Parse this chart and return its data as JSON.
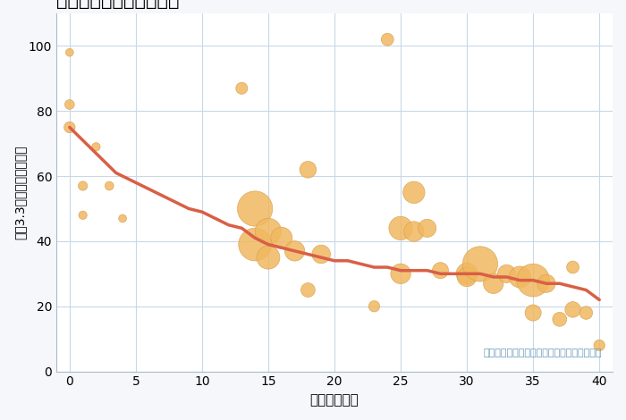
{
  "xlabel": "築年数（年）",
  "ylabel": "坪（3.3㎡）単価（万円）",
  "annotation": "円の大きさは、取引のあった物件面積を示す",
  "fig_bg_color": "#f5f7fa",
  "plot_bg_color": "#ffffff",
  "grid_color": "#c8d8e8",
  "scatter_color": "#f0b860",
  "scatter_edge_color": "#d9a050",
  "line_color": "#d95f45",
  "annotation_color": "#6699bb",
  "xlim": [
    -1,
    41
  ],
  "ylim": [
    0,
    110
  ],
  "xticks": [
    0,
    5,
    10,
    15,
    20,
    25,
    30,
    35,
    40
  ],
  "yticks": [
    0,
    20,
    40,
    60,
    80,
    100
  ],
  "scatter_x": [
    0,
    0,
    0,
    1,
    1,
    2,
    3,
    4,
    13,
    14,
    14,
    15,
    15,
    16,
    17,
    18,
    18,
    19,
    23,
    24,
    25,
    25,
    26,
    26,
    27,
    28,
    30,
    30,
    31,
    32,
    33,
    34,
    35,
    35,
    36,
    37,
    38,
    38,
    39,
    40
  ],
  "scatter_y": [
    98,
    82,
    75,
    57,
    48,
    69,
    57,
    47,
    87,
    50,
    39,
    43,
    35,
    41,
    37,
    62,
    25,
    36,
    20,
    102,
    44,
    30,
    55,
    43,
    44,
    31,
    30,
    29,
    33,
    27,
    30,
    29,
    18,
    28,
    27,
    16,
    19,
    32,
    18,
    8
  ],
  "scatter_size": [
    40,
    60,
    80,
    55,
    45,
    45,
    50,
    40,
    90,
    800,
    700,
    450,
    350,
    300,
    260,
    180,
    130,
    220,
    80,
    100,
    360,
    260,
    310,
    260,
    210,
    170,
    300,
    240,
    800,
    260,
    210,
    300,
    170,
    700,
    210,
    130,
    160,
    100,
    110,
    80
  ],
  "trend_x": [
    0,
    0.5,
    1,
    1.5,
    2,
    2.5,
    3,
    3.5,
    4,
    5,
    6,
    7,
    8,
    9,
    10,
    11,
    12,
    13,
    14,
    15,
    16,
    17,
    18,
    19,
    20,
    21,
    22,
    23,
    24,
    25,
    26,
    27,
    28,
    29,
    30,
    31,
    32,
    33,
    34,
    35,
    36,
    37,
    38,
    39,
    40
  ],
  "trend_y": [
    75,
    73,
    71,
    69,
    67,
    65,
    63,
    61,
    60,
    58,
    56,
    54,
    52,
    50,
    49,
    47,
    45,
    44,
    41,
    39,
    38,
    37,
    36,
    35,
    34,
    34,
    33,
    32,
    32,
    31,
    31,
    31,
    30,
    30,
    30,
    30,
    29,
    29,
    28,
    28,
    27,
    27,
    26,
    25,
    22
  ]
}
